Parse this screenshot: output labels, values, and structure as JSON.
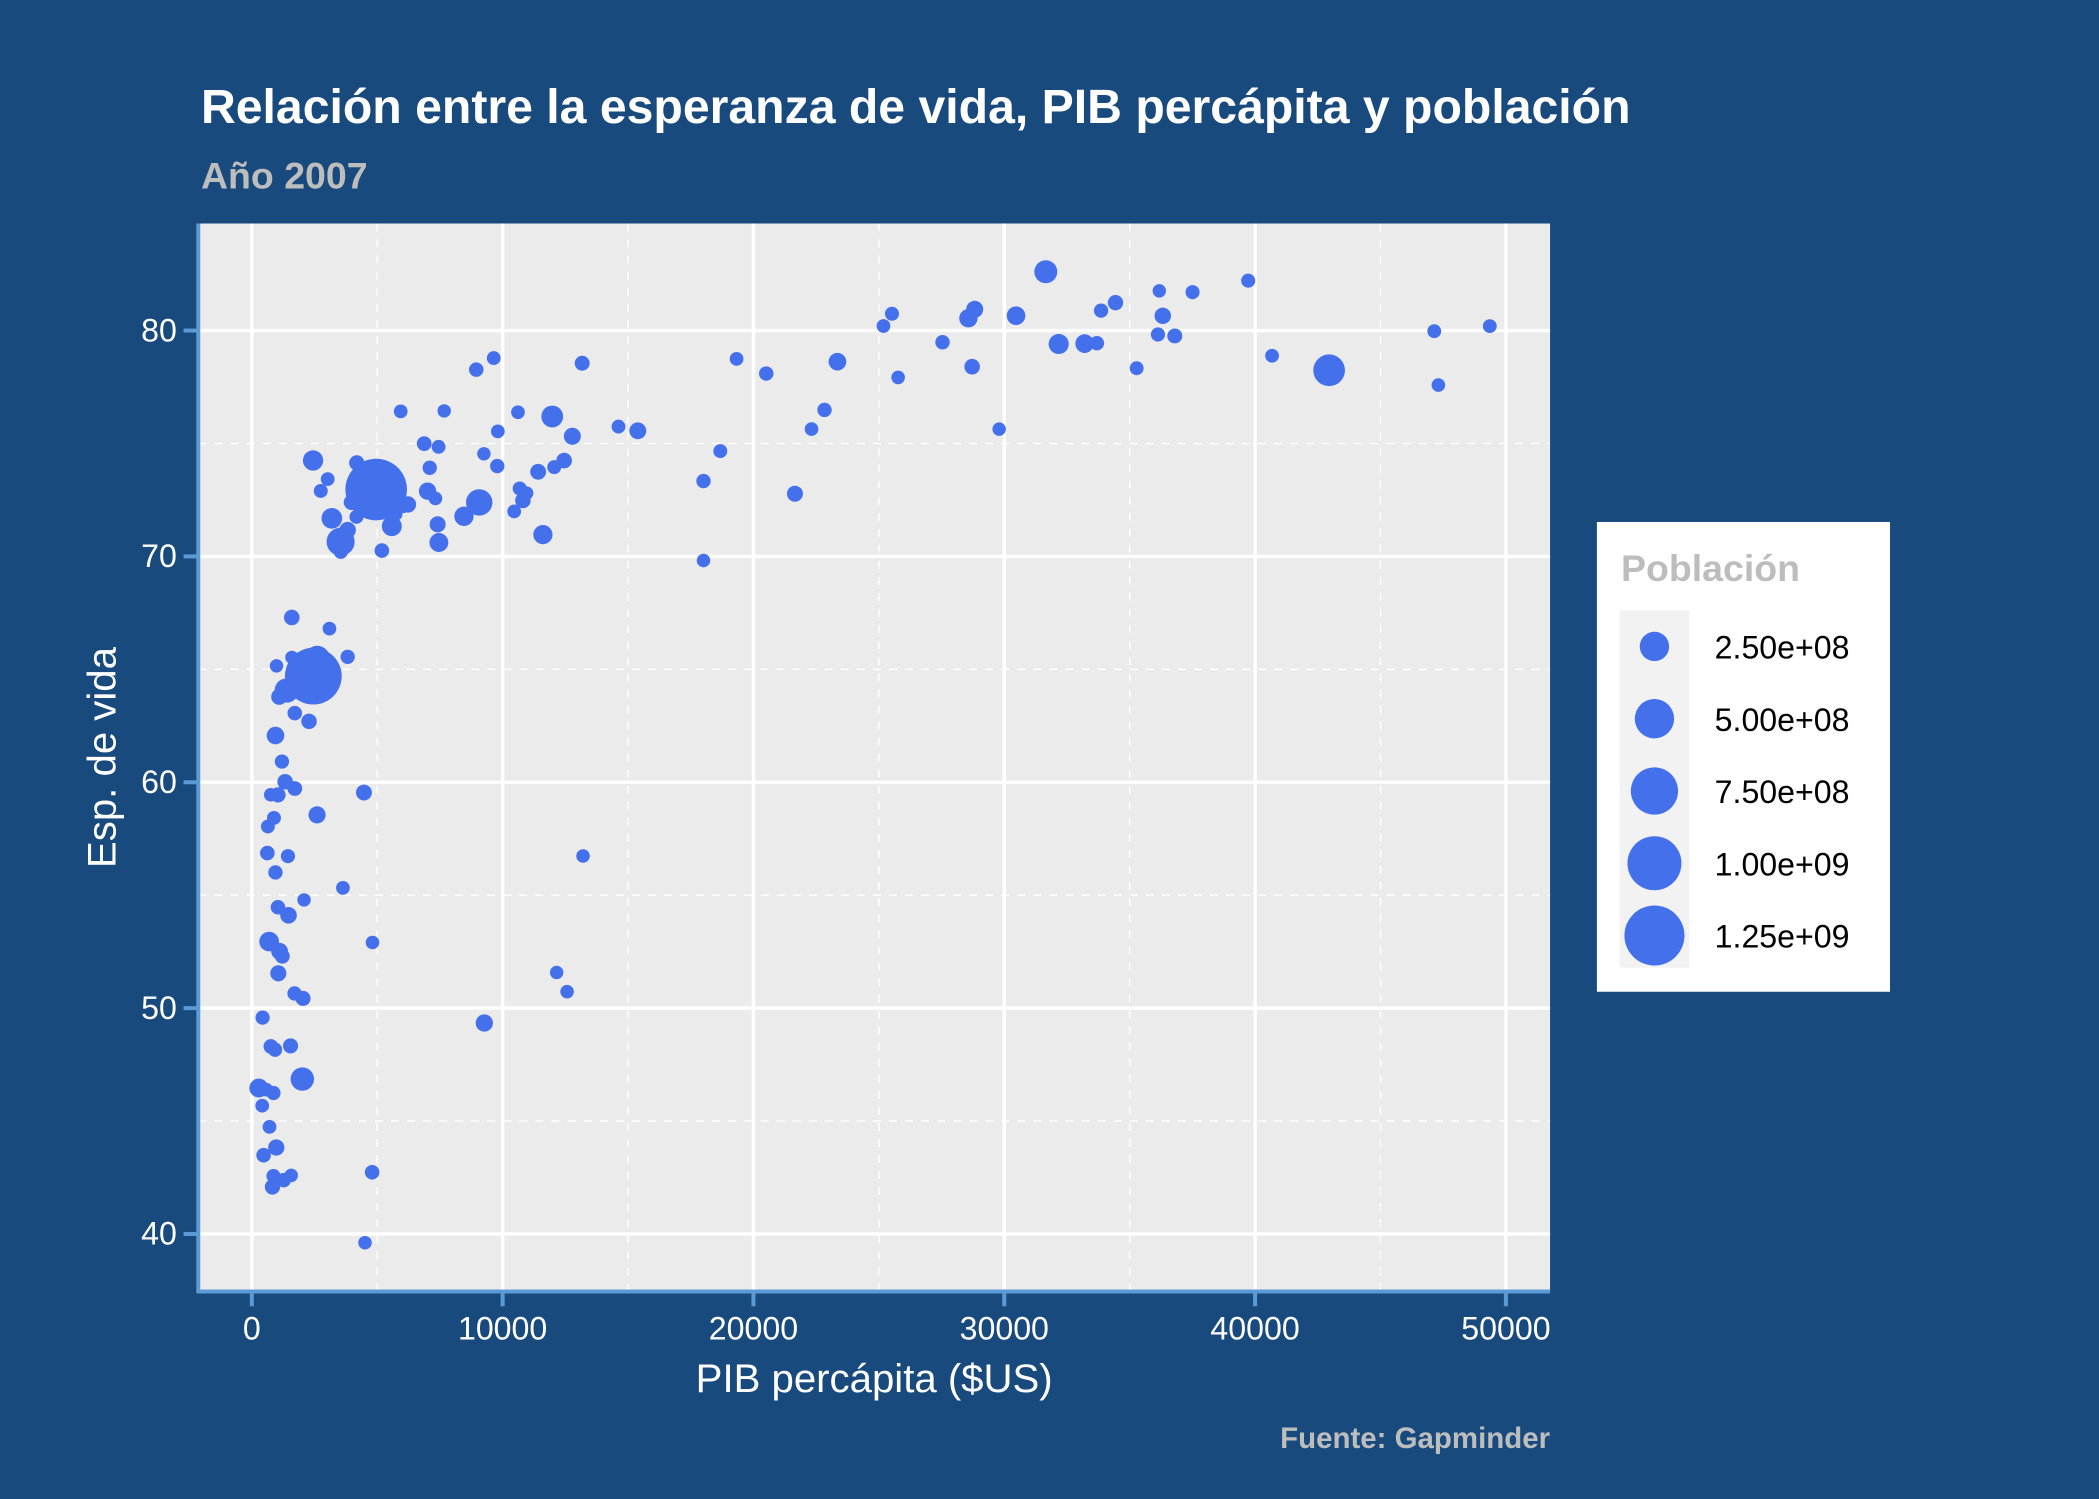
{
  "chart_data": {
    "type": "scatter",
    "title": "Relación entre la esperanza de vida, PIB percápita y población",
    "subtitle": "Año 2007",
    "caption": "Fuente: Gapminder",
    "xlabel": "PIB percápita ($US)",
    "ylabel": "Esp. de vida",
    "xlim": [
      -2134,
      51760
    ],
    "ylim": [
      37.45,
      84.74
    ],
    "x_ticks": [
      "0",
      "10000",
      "20000",
      "30000",
      "40000",
      "50000"
    ],
    "y_ticks": [
      "40",
      "50",
      "60",
      "70",
      "80"
    ],
    "grid": true,
    "legend": {
      "title": "Población",
      "placement": "right",
      "labels": [
        "2.50e+08",
        "5.00e+08",
        "7.50e+08",
        "1.00e+09",
        "1.25e+09"
      ],
      "values": [
        250000000,
        500000000,
        750000000,
        1000000000,
        1250000000
      ]
    },
    "point_fields": [
      "gdpPercap",
      "lifeExp",
      "pop"
    ],
    "points": [
      [
        974.58,
        43.828,
        31889923
      ],
      [
        5937.03,
        76.423,
        3600523
      ],
      [
        6223.37,
        72.301,
        33333216
      ],
      [
        4797.23,
        42.731,
        12420476
      ],
      [
        12779.38,
        75.32,
        40301927
      ],
      [
        34435.37,
        81.235,
        20434176
      ],
      [
        36126.49,
        79.829,
        8199783
      ],
      [
        29796.05,
        75.635,
        708573
      ],
      [
        1391.25,
        64.062,
        150448339
      ],
      [
        33692.61,
        79.441,
        10392226
      ],
      [
        1441.28,
        56.728,
        8078314
      ],
      [
        3822.14,
        65.554,
        9119152
      ],
      [
        7446.3,
        74.852,
        4552198
      ],
      [
        12569.85,
        50.728,
        1639131
      ],
      [
        9065.8,
        72.39,
        190010647
      ],
      [
        10680.79,
        73.005,
        7322858
      ],
      [
        1217.03,
        52.295,
        14326203
      ],
      [
        430.07,
        49.58,
        8390505
      ],
      [
        1713.78,
        59.723,
        14131858
      ],
      [
        2042.1,
        50.43,
        17696293
      ],
      [
        36319.24,
        80.653,
        33390141
      ],
      [
        706.02,
        44.741,
        4369038
      ],
      [
        1704.06,
        50.651,
        10238807
      ],
      [
        13171.64,
        78.553,
        16284741
      ],
      [
        4959.11,
        72.961,
        1318683096
      ],
      [
        7006.58,
        72.889,
        44227550
      ],
      [
        986.15,
        65.152,
        710960
      ],
      [
        277.55,
        46.462,
        64606759
      ],
      [
        3632.56,
        55.322,
        3800610
      ],
      [
        9645.06,
        78.782,
        4133884
      ],
      [
        1544.75,
        48.328,
        18013409
      ],
      [
        14619.22,
        75.748,
        4493312
      ],
      [
        8948.1,
        78.273,
        11416987
      ],
      [
        22833.31,
        76.486,
        10228744
      ],
      [
        35278.42,
        78.332,
        5468120
      ],
      [
        2082.48,
        54.791,
        496374
      ],
      [
        6025.37,
        72.235,
        9319622
      ],
      [
        6873.26,
        74.994,
        13755680
      ],
      [
        5581.18,
        71.338,
        80264543
      ],
      [
        5728.35,
        71.878,
        6939688
      ],
      [
        12154.09,
        51.579,
        551201
      ],
      [
        641.37,
        58.04,
        4906585
      ],
      [
        690.81,
        52.947,
        76511887
      ],
      [
        33207.08,
        79.313,
        5238460
      ],
      [
        30470.02,
        80.657,
        61083916
      ],
      [
        13206.48,
        56.735,
        1454867
      ],
      [
        752.75,
        59.448,
        1688359
      ],
      [
        32170.37,
        79.406,
        82400996
      ],
      [
        1327.61,
        60.022,
        22873338
      ],
      [
        27538.41,
        79.483,
        10706290
      ],
      [
        5186.05,
        70.259,
        12572928
      ],
      [
        942.65,
        56.007,
        9947814
      ],
      [
        579.23,
        46.388,
        1472041
      ],
      [
        1201.64,
        60.916,
        8502814
      ],
      [
        3548.33,
        70.198,
        7483763
      ],
      [
        39724.98,
        82.208,
        6980412
      ],
      [
        18008.94,
        73.338,
        9956108
      ],
      [
        36180.79,
        81.757,
        301931
      ],
      [
        2452.21,
        64.698,
        1110396331
      ],
      [
        3540.65,
        70.65,
        223547000
      ],
      [
        11605.71,
        70.964,
        69453570
      ],
      [
        4471.06,
        59.545,
        27499638
      ],
      [
        40676.0,
        78.885,
        4109086
      ],
      [
        25523.28,
        80.745,
        6426679
      ],
      [
        28569.72,
        80.546,
        58147733
      ],
      [
        7320.88,
        72.567,
        2780132
      ],
      [
        31656.07,
        82.603,
        127467972
      ],
      [
        4519.46,
        72.535,
        6053193
      ],
      [
        1463.25,
        54.11,
        35610177
      ],
      [
        1593.07,
        67.297,
        23301725
      ],
      [
        23348.14,
        78.623,
        49044790
      ],
      [
        47306.99,
        77.588,
        2505559
      ],
      [
        10461.06,
        71.993,
        3921278
      ],
      [
        1569.33,
        42.592,
        2012649
      ],
      [
        414.51,
        45.678,
        3193942
      ],
      [
        12057.5,
        73.952,
        6036914
      ],
      [
        1044.77,
        59.443,
        19167654
      ],
      [
        759.35,
        48.303,
        13327079
      ],
      [
        12451.66,
        74.241,
        24821286
      ],
      [
        1042.58,
        54.467,
        12031795
      ],
      [
        1803.15,
        64.164,
        3270065
      ],
      [
        10956.99,
        72.801,
        1250882
      ],
      [
        11977.57,
        76.195,
        108700891
      ],
      [
        3095.77,
        66.803,
        2874127
      ],
      [
        9253.9,
        74.543,
        684736
      ],
      [
        3820.18,
        71.164,
        33757175
      ],
      [
        823.69,
        42.082,
        19951656
      ],
      [
        944.0,
        62.069,
        47761980
      ],
      [
        4811.06,
        52.906,
        2055080
      ],
      [
        1091.36,
        63.785,
        28901790
      ],
      [
        36797.93,
        79.762,
        16570613
      ],
      [
        25185.01,
        80.204,
        4115771
      ],
      [
        2749.32,
        72.899,
        5675356
      ],
      [
        619.68,
        56.867,
        12894865
      ],
      [
        2013.98,
        46.859,
        135031164
      ],
      [
        49357.19,
        80.196,
        4627926
      ],
      [
        22316.19,
        75.64,
        3204897
      ],
      [
        2605.95,
        65.483,
        169270617
      ],
      [
        9809.19,
        75.537,
        3242173
      ],
      [
        4172.84,
        71.752,
        6667147
      ],
      [
        7408.91,
        71.421,
        28674757
      ],
      [
        3190.48,
        71.688,
        91077287
      ],
      [
        15389.92,
        75.563,
        38518241
      ],
      [
        20509.65,
        78.098,
        10642836
      ],
      [
        19328.71,
        78.746,
        3942491
      ],
      [
        7670.12,
        76.442,
        798094
      ],
      [
        10808.48,
        72.476,
        22276056
      ],
      [
        863.09,
        46.242,
        8860588
      ],
      [
        1598.44,
        65.528,
        199579
      ],
      [
        21654.83,
        72.777,
        27601038
      ],
      [
        1712.47,
        63.062,
        12267493
      ],
      [
        9786.53,
        74.002,
        10150265
      ],
      [
        862.54,
        42.568,
        6144562
      ],
      [
        47143.18,
        79.972,
        4553009
      ],
      [
        18678.31,
        74.663,
        5447502
      ],
      [
        25768.26,
        77.926,
        2009245
      ],
      [
        926.14,
        48.159,
        9118773
      ],
      [
        9269.66,
        49.339,
        43997828
      ],
      [
        28821.06,
        80.941,
        40448191
      ],
      [
        3970.1,
        72.396,
        20378239
      ],
      [
        2602.39,
        58.556,
        42292929
      ],
      [
        4513.48,
        39.613,
        1133066
      ],
      [
        33859.75,
        80.884,
        9031088
      ],
      [
        37506.42,
        81.701,
        7554661
      ],
      [
        4184.55,
        74.143,
        19314747
      ],
      [
        28718.28,
        78.4,
        23174294
      ],
      [
        1107.48,
        52.517,
        38139640
      ],
      [
        7458.4,
        70.616,
        65068149
      ],
      [
        882.97,
        58.42,
        5701579
      ],
      [
        18008.51,
        69.819,
        1056608
      ],
      [
        7092.92,
        73.923,
        10276158
      ],
      [
        8458.28,
        71.777,
        71158647
      ],
      [
        1056.38,
        51.542,
        29170398
      ],
      [
        33203.26,
        79.425,
        60776238
      ],
      [
        42951.65,
        78.242,
        301139947
      ],
      [
        10611.46,
        76.384,
        3447496
      ],
      [
        11415.81,
        73.747,
        26084662
      ],
      [
        2441.58,
        74.249,
        85262356
      ],
      [
        3025.35,
        73.422,
        4018332
      ],
      [
        2280.77,
        62.698,
        22211743
      ],
      [
        1271.21,
        42.384,
        11746035
      ],
      [
        469.71,
        43.487,
        12311143
      ]
    ]
  },
  "colors": {
    "background": "#184a7e",
    "panel": "#ebebeb",
    "point": "#4570ec",
    "axis": "#5b9bd5",
    "title": "#ffffff",
    "subtitle": "#bdbdbd",
    "legend_title": "#bdbdbd"
  }
}
